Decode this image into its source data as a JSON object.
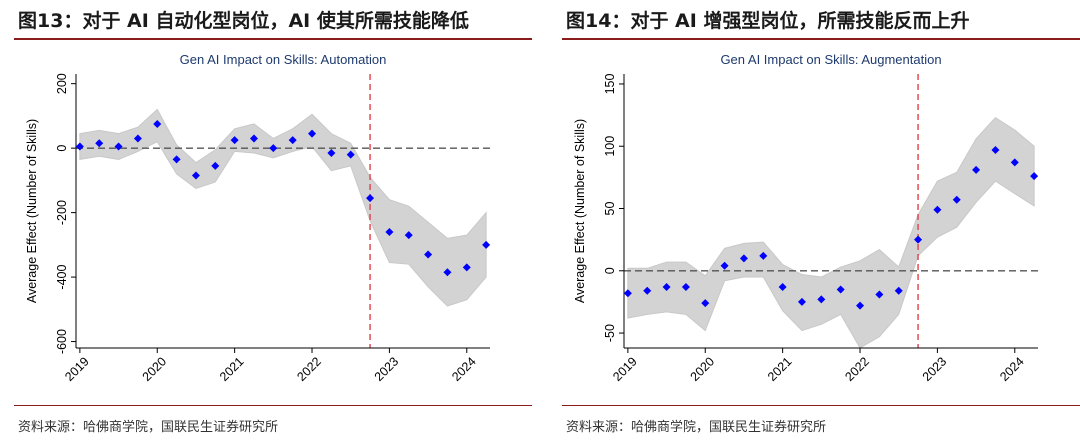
{
  "figures": [
    {
      "title": "图13：对于 AI 自动化型岗位，AI 使其所需技能降低",
      "source": "资料来源：哈佛商学院，国联民生证券研究所",
      "chart_data": {
        "type": "scatter",
        "title": "Gen AI Impact on Skills: Automation",
        "xlabel": "",
        "ylabel": "Average Effect (Number of Skills)",
        "xlim": [
          2018.95,
          2024.3
        ],
        "ylim": [
          -620,
          230
        ],
        "x_ticks": [
          2019,
          2020,
          2021,
          2022,
          2023,
          2024
        ],
        "x_tick_labels": [
          "2019",
          "2020",
          "2021",
          "2022",
          "2023",
          "2024"
        ],
        "y_ticks": [
          200,
          0,
          -200,
          -400,
          -600
        ],
        "y_tick_labels": [
          "200",
          "0",
          "-200",
          "-400",
          "-600"
        ],
        "reference_hline": 0,
        "event_vline": 2022.75,
        "grid": false,
        "legend": "none",
        "colors": {
          "points": "#0000ff",
          "band": "#d3d3d3",
          "vline": "#e0404a",
          "hline": "#555555"
        },
        "series": [
          {
            "x": [
              2019.0,
              2019.25,
              2019.5,
              2019.75,
              2020.0,
              2020.25,
              2020.5,
              2020.75,
              2021.0,
              2021.25,
              2021.5,
              2021.75,
              2022.0,
              2022.25,
              2022.5,
              2022.75,
              2023.0,
              2023.25,
              2023.5,
              2023.75,
              2024.0,
              2024.25
            ],
            "y": [
              5,
              15,
              5,
              30,
              75,
              -35,
              -85,
              -55,
              25,
              30,
              0,
              25,
              45,
              -15,
              -20,
              -155,
              -260,
              -270,
              -330,
              -385,
              -370,
              -300
            ],
            "lower": [
              -35,
              -25,
              -35,
              -10,
              20,
              -80,
              -125,
              -105,
              -10,
              -15,
              -30,
              -10,
              5,
              -70,
              -55,
              -225,
              -355,
              -360,
              -430,
              -490,
              -470,
              -400
            ],
            "upper": [
              45,
              55,
              45,
              65,
              120,
              10,
              -45,
              -5,
              60,
              75,
              30,
              60,
              105,
              45,
              15,
              -90,
              -160,
              -180,
              -230,
              -280,
              -270,
              -200
            ]
          }
        ]
      }
    },
    {
      "title": "图14：对于 AI 增强型岗位，所需技能反而上升",
      "source": "资料来源：哈佛商学院，国联民生证券研究所",
      "chart_data": {
        "type": "scatter",
        "title": "Gen AI Impact on Skills: Augmentation",
        "xlabel": "",
        "ylabel": "Average Effect (Number of Skills)",
        "xlim": [
          2018.95,
          2024.3
        ],
        "ylim": [
          -62,
          158
        ],
        "x_ticks": [
          2019,
          2020,
          2021,
          2022,
          2023,
          2024
        ],
        "x_tick_labels": [
          "2019",
          "2020",
          "2021",
          "2022",
          "2023",
          "2024"
        ],
        "y_ticks": [
          150,
          100,
          50,
          0,
          -50
        ],
        "y_tick_labels": [
          "150",
          "100",
          "50",
          "0",
          "-50"
        ],
        "reference_hline": 0,
        "event_vline": 2022.75,
        "grid": false,
        "legend": "none",
        "colors": {
          "points": "#0000ff",
          "band": "#d3d3d3",
          "vline": "#e0404a",
          "hline": "#555555"
        },
        "series": [
          {
            "x": [
              2019.0,
              2019.25,
              2019.5,
              2019.75,
              2020.0,
              2020.25,
              2020.5,
              2020.75,
              2021.0,
              2021.25,
              2021.5,
              2021.75,
              2022.0,
              2022.25,
              2022.5,
              2022.75,
              2023.0,
              2023.25,
              2023.5,
              2023.75,
              2024.0,
              2024.25
            ],
            "y": [
              -18,
              -16,
              -13,
              -13,
              -26,
              4,
              10,
              12,
              -13,
              -25,
              -23,
              -15,
              -28,
              -19,
              -16,
              25,
              49,
              57,
              81,
              97,
              87,
              76
            ],
            "lower": [
              -38,
              -35,
              -33,
              -35,
              -48,
              -8,
              -5,
              -5,
              -32,
              -48,
              -43,
              -35,
              -62,
              -53,
              -35,
              12,
              27,
              35,
              55,
              72,
              62,
              52
            ],
            "upper": [
              2,
              2,
              7,
              7,
              -4,
              18,
              22,
              23,
              5,
              -3,
              -5,
              3,
              8,
              17,
              3,
              45,
              72,
              79,
              106,
              123,
              113,
              100
            ]
          }
        ]
      }
    }
  ]
}
